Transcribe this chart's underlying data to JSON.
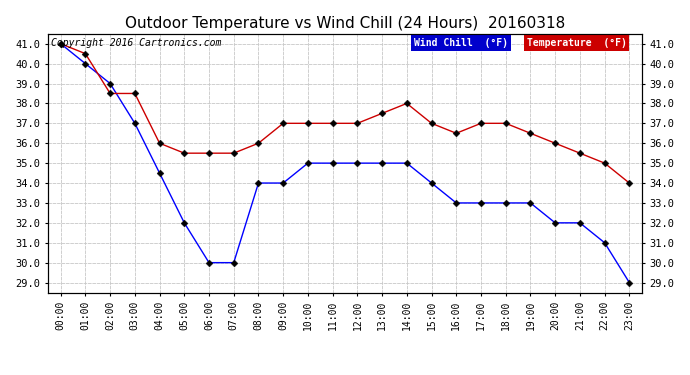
{
  "title": "Outdoor Temperature vs Wind Chill (24 Hours)  20160318",
  "copyright": "Copyright 2016 Cartronics.com",
  "x_labels": [
    "00:00",
    "01:00",
    "02:00",
    "03:00",
    "04:00",
    "05:00",
    "06:00",
    "07:00",
    "08:00",
    "09:00",
    "10:00",
    "11:00",
    "12:00",
    "13:00",
    "14:00",
    "15:00",
    "16:00",
    "17:00",
    "18:00",
    "19:00",
    "20:00",
    "21:00",
    "22:00",
    "23:00"
  ],
  "ylim": [
    28.5,
    41.5
  ],
  "yticks": [
    29.0,
    30.0,
    31.0,
    32.0,
    33.0,
    34.0,
    35.0,
    36.0,
    37.0,
    38.0,
    39.0,
    40.0,
    41.0
  ],
  "wind_chill": [
    41.0,
    40.0,
    39.0,
    37.0,
    34.5,
    32.0,
    30.0,
    30.0,
    34.0,
    34.0,
    35.0,
    35.0,
    35.0,
    35.0,
    35.0,
    34.0,
    33.0,
    33.0,
    33.0,
    33.0,
    32.0,
    32.0,
    31.0,
    29.0
  ],
  "temperature": [
    41.0,
    40.5,
    38.5,
    38.5,
    36.0,
    35.5,
    35.5,
    35.5,
    36.0,
    37.0,
    37.0,
    37.0,
    37.0,
    37.5,
    38.0,
    37.0,
    36.5,
    37.0,
    37.0,
    36.5,
    36.0,
    35.5,
    35.0,
    34.0
  ],
  "wind_chill_color": "#0000ff",
  "temperature_color": "#cc0000",
  "background_color": "#ffffff",
  "grid_color": "#c8c8c8",
  "legend_wc_bg": "#0000cc",
  "legend_temp_bg": "#cc0000",
  "legend_text_color": "#ffffff",
  "title_fontsize": 11,
  "copyright_fontsize": 7,
  "marker_size": 3.5
}
